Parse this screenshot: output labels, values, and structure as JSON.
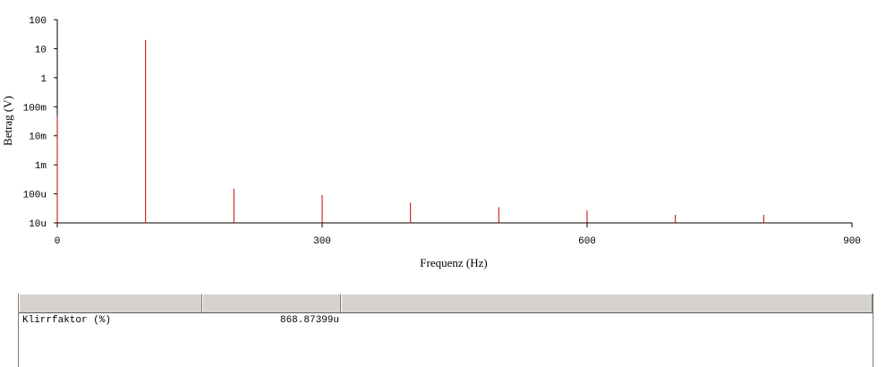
{
  "chart_data": {
    "type": "bar",
    "xlabel": "Frequenz (Hz)",
    "ylabel": "Betrag (V)",
    "xlim": [
      0,
      900
    ],
    "ylim": [
      1e-05,
      100
    ],
    "yscale": "log",
    "x_ticks": [
      {
        "value": 0,
        "label": "0"
      },
      {
        "value": 300,
        "label": "300"
      },
      {
        "value": 600,
        "label": "600"
      },
      {
        "value": 900,
        "label": "900"
      }
    ],
    "y_ticks": [
      {
        "value": 100,
        "label": "100"
      },
      {
        "value": 10,
        "label": "10"
      },
      {
        "value": 1,
        "label": "1"
      },
      {
        "value": 0.1,
        "label": "100m"
      },
      {
        "value": 0.01,
        "label": "10m"
      },
      {
        "value": 0.001,
        "label": "1m"
      },
      {
        "value": 0.0001,
        "label": "100u"
      },
      {
        "value": 1e-05,
        "label": "10u"
      }
    ],
    "series": [
      {
        "color": "#cc0000",
        "points": [
          {
            "x": 0,
            "y": 0.05
          },
          {
            "x": 100,
            "y": 20
          },
          {
            "x": 200,
            "y": 0.00015
          },
          {
            "x": 300,
            "y": 9e-05
          },
          {
            "x": 400,
            "y": 5e-05
          },
          {
            "x": 500,
            "y": 3.5e-05
          },
          {
            "x": 600,
            "y": 2.7e-05
          },
          {
            "x": 700,
            "y": 1.9e-05
          },
          {
            "x": 800,
            "y": 1.9e-05
          }
        ]
      }
    ]
  },
  "results": {
    "headers": [
      "",
      "",
      ""
    ],
    "rows": [
      {
        "name": "Klirrfaktor (%)",
        "value": "868.87399u"
      }
    ]
  }
}
